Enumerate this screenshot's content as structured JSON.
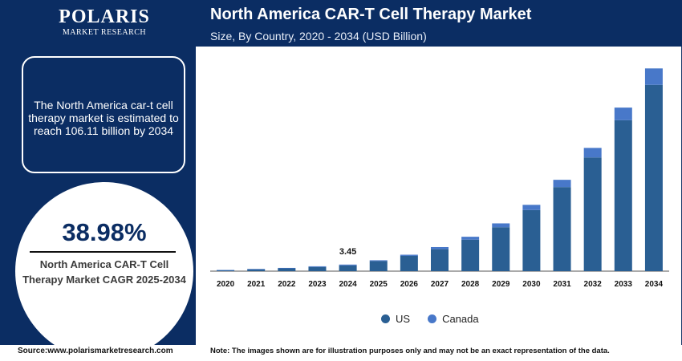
{
  "brand": {
    "name": "POLARIS",
    "tagline": "MARKET RESEARCH"
  },
  "header": {
    "title": "North America CAR-T Cell Therapy Market",
    "subtitle": "Size, By Country, 2020 - 2034 (USD Billion)"
  },
  "info": {
    "text": "The North America car-t cell therapy market is estimated to reach 106.11 billion by 2034"
  },
  "cagr": {
    "value": "38.98%",
    "label": "North America CAR-T Cell Therapy Market CAGR 2025-2034"
  },
  "footer": {
    "source": "Source:www.polarismarketresearch.com",
    "note": "Note: The images shown are for illustration purposes only and may not be an exact representation of the data."
  },
  "colors": {
    "navy": "#0b2d63",
    "us": "#2a5f93",
    "canada": "#4878c9"
  },
  "chart_data": {
    "type": "bar",
    "stacked": true,
    "categories": [
      "2020",
      "2021",
      "2022",
      "2023",
      "2024",
      "2025",
      "2026",
      "2027",
      "2028",
      "2029",
      "2030",
      "2031",
      "2032",
      "2033",
      "2034"
    ],
    "series": [
      {
        "name": "US",
        "values": [
          0.5,
          1.0,
          1.5,
          2.2,
          3.0,
          5.3,
          8.0,
          11.5,
          16.5,
          23.0,
          32.0,
          44.0,
          59.5,
          79.0,
          97.5
        ]
      },
      {
        "name": "Canada",
        "values": [
          0.1,
          0.15,
          0.2,
          0.35,
          0.45,
          0.4,
          0.6,
          1.1,
          1.5,
          2.0,
          2.7,
          3.8,
          5.0,
          6.6,
          8.6
        ]
      }
    ],
    "annotations": [
      {
        "category": "2024",
        "label": "3.45"
      }
    ],
    "ylim": [
      0,
      110
    ],
    "grid": false,
    "legend": "bottom"
  }
}
